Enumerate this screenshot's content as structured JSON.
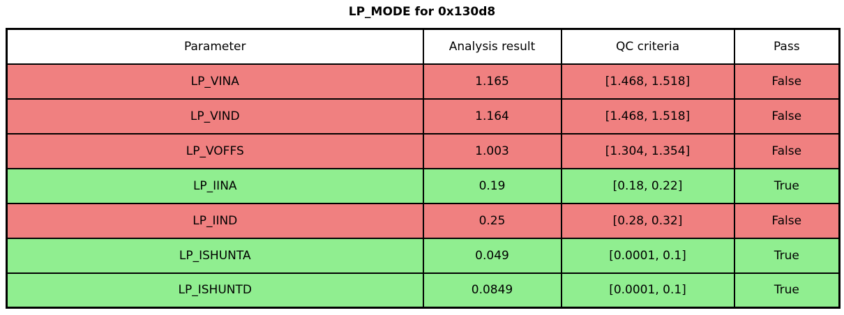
{
  "title": "LP_MODE for 0x130d8",
  "chart_data": {
    "type": "table",
    "title": "LP_MODE for 0x130d8",
    "columns": [
      "Parameter",
      "Analysis result",
      "QC criteria",
      "Pass"
    ],
    "rows": [
      {
        "parameter": "LP_VINA",
        "analysis_result": "1.165",
        "qc_criteria": "[1.468, 1.518]",
        "pass": "False"
      },
      {
        "parameter": "LP_VIND",
        "analysis_result": "1.164",
        "qc_criteria": "[1.468, 1.518]",
        "pass": "False"
      },
      {
        "parameter": "LP_VOFFS",
        "analysis_result": "1.003",
        "qc_criteria": "[1.304, 1.354]",
        "pass": "False"
      },
      {
        "parameter": "LP_IINA",
        "analysis_result": "0.19",
        "qc_criteria": "[0.18, 0.22]",
        "pass": "True"
      },
      {
        "parameter": "LP_IIND",
        "analysis_result": "0.25",
        "qc_criteria": "[0.28, 0.32]",
        "pass": "False"
      },
      {
        "parameter": "LP_ISHUNTA",
        "analysis_result": "0.049",
        "qc_criteria": "[0.0001, 0.1]",
        "pass": "True"
      },
      {
        "parameter": "LP_ISHUNTD",
        "analysis_result": "0.0849",
        "qc_criteria": "[0.0001, 0.1]",
        "pass": "True"
      }
    ],
    "colors": {
      "fail_row": "#f08080",
      "pass_row": "#90ee90",
      "header_bg": "#ffffff",
      "border": "#000000",
      "text": "#000000"
    },
    "layout": {
      "legend": "none",
      "grid": "table-borders",
      "title_position": "top-center"
    }
  }
}
